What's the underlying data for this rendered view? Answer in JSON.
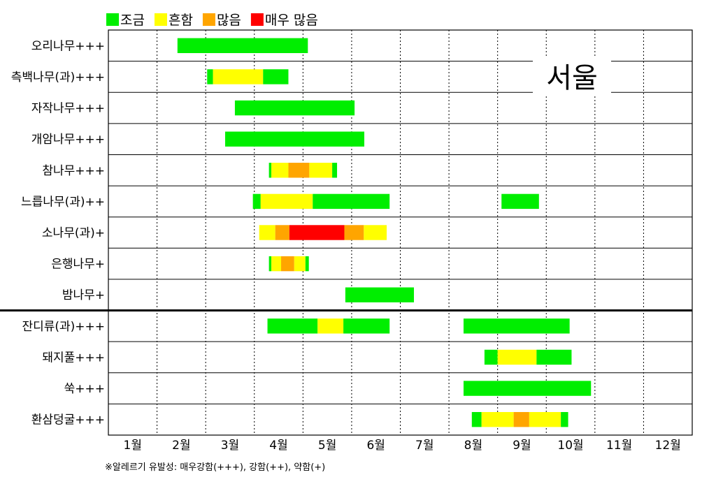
{
  "chart_data": {
    "type": "gantt",
    "title": "서울",
    "footnote": "※알레르기 유발성: 매우강함(+++), 강함(++), 약함(+)",
    "months": [
      "1월",
      "2월",
      "3월",
      "4월",
      "5월",
      "6월",
      "7월",
      "8월",
      "9월",
      "10월",
      "11월",
      "12월"
    ],
    "x_range": [
      1,
      13
    ],
    "legend": [
      {
        "label": "조금",
        "color": "#00EE00"
      },
      {
        "label": "흔함",
        "color": "#FFFF00"
      },
      {
        "label": "많음",
        "color": "#FFA500"
      },
      {
        "label": "매우 많음",
        "color": "#FF0000"
      }
    ],
    "levels": {
      "조금": "#00EE00",
      "흔함": "#FFFF00",
      "많음": "#FFA500",
      "매우 많음": "#FF0000"
    },
    "group_separator_after_row": 9,
    "rows": [
      {
        "label": "오리나무+++",
        "segments": [
          {
            "start": 2.42,
            "end": 5.1,
            "level": "조금"
          }
        ]
      },
      {
        "label": "측백나무(과)+++",
        "segments": [
          {
            "start": 3.03,
            "end": 3.15,
            "level": "조금"
          },
          {
            "start": 3.15,
            "end": 4.18,
            "level": "흔함"
          },
          {
            "start": 4.18,
            "end": 4.7,
            "level": "조금"
          }
        ]
      },
      {
        "label": "자작나무+++",
        "segments": [
          {
            "start": 3.6,
            "end": 6.06,
            "level": "조금"
          }
        ]
      },
      {
        "label": "개암나무+++",
        "segments": [
          {
            "start": 3.4,
            "end": 6.26,
            "level": "조금"
          }
        ]
      },
      {
        "label": "참나무+++",
        "segments": [
          {
            "start": 4.3,
            "end": 4.35,
            "level": "조금"
          },
          {
            "start": 4.35,
            "end": 4.7,
            "level": "흔함"
          },
          {
            "start": 4.7,
            "end": 5.13,
            "level": "많음"
          },
          {
            "start": 5.13,
            "end": 5.6,
            "level": "흔함"
          },
          {
            "start": 5.6,
            "end": 5.7,
            "level": "조금"
          }
        ]
      },
      {
        "label": "느릅나무(과)++",
        "segments": [
          {
            "start": 3.97,
            "end": 4.13,
            "level": "조금"
          },
          {
            "start": 4.13,
            "end": 5.2,
            "level": "흔함"
          },
          {
            "start": 5.2,
            "end": 6.78,
            "level": "조금"
          },
          {
            "start": 9.08,
            "end": 9.85,
            "level": "조금"
          }
        ]
      },
      {
        "label": "소나무(과)+",
        "segments": [
          {
            "start": 4.1,
            "end": 4.43,
            "level": "흔함"
          },
          {
            "start": 4.43,
            "end": 4.72,
            "level": "많음"
          },
          {
            "start": 4.72,
            "end": 5.85,
            "level": "매우 많음"
          },
          {
            "start": 5.85,
            "end": 6.25,
            "level": "많음"
          },
          {
            "start": 6.25,
            "end": 6.72,
            "level": "흔함"
          }
        ]
      },
      {
        "label": "은행나무+",
        "segments": [
          {
            "start": 4.3,
            "end": 4.35,
            "level": "조금"
          },
          {
            "start": 4.35,
            "end": 4.55,
            "level": "흔함"
          },
          {
            "start": 4.55,
            "end": 4.82,
            "level": "많음"
          },
          {
            "start": 4.82,
            "end": 5.05,
            "level": "흔함"
          },
          {
            "start": 5.05,
            "end": 5.12,
            "level": "조금"
          }
        ]
      },
      {
        "label": "밤나무+",
        "segments": [
          {
            "start": 5.87,
            "end": 7.28,
            "level": "조금"
          }
        ]
      },
      {
        "label": "잔디류(과)+++",
        "segments": [
          {
            "start": 4.27,
            "end": 5.3,
            "level": "조금"
          },
          {
            "start": 5.3,
            "end": 5.83,
            "level": "흔함"
          },
          {
            "start": 5.83,
            "end": 6.78,
            "level": "조금"
          },
          {
            "start": 8.3,
            "end": 10.48,
            "level": "조금"
          }
        ]
      },
      {
        "label": "돼지풀+++",
        "segments": [
          {
            "start": 8.73,
            "end": 9.0,
            "level": "조금"
          },
          {
            "start": 9.0,
            "end": 9.8,
            "level": "흔함"
          },
          {
            "start": 9.8,
            "end": 10.52,
            "level": "조금"
          }
        ]
      },
      {
        "label": "쑥+++",
        "segments": [
          {
            "start": 8.3,
            "end": 10.92,
            "level": "조금"
          }
        ]
      },
      {
        "label": "환삼덩굴+++",
        "segments": [
          {
            "start": 8.47,
            "end": 8.67,
            "level": "조금"
          },
          {
            "start": 8.67,
            "end": 9.33,
            "level": "흔함"
          },
          {
            "start": 9.33,
            "end": 9.65,
            "level": "많음"
          },
          {
            "start": 9.65,
            "end": 10.3,
            "level": "흔함"
          },
          {
            "start": 10.3,
            "end": 10.45,
            "level": "조금"
          }
        ]
      }
    ]
  }
}
